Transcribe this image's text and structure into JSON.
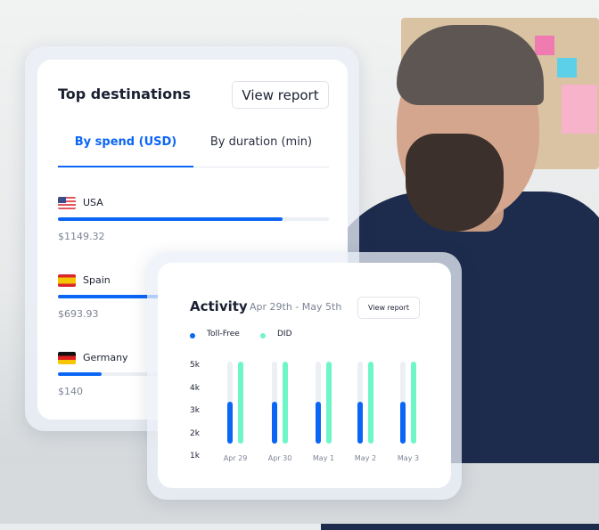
{
  "top_destinations": {
    "title": "Top destinations",
    "view_report": "View report",
    "tabs": [
      {
        "label": "By spend (USD)",
        "active": true
      },
      {
        "label": "By duration (min)",
        "active": false
      }
    ],
    "rows": [
      {
        "country": "USA",
        "flag": "us-flag-icon",
        "value": "$1149.32",
        "fill_percent": 83
      },
      {
        "country": "Spain",
        "flag": "spain-flag-icon",
        "value": "$693.93",
        "fill_percent": 50
      },
      {
        "country": "Germany",
        "flag": "germany-flag-icon",
        "value": "$140",
        "fill_percent": 16
      }
    ]
  },
  "activity": {
    "title": "Activity",
    "date_range": "Apr 29th - May 5th",
    "view_report": "View report"
  },
  "colors": {
    "accent": "#0b66f5",
    "did": "#6ef5c8",
    "title": "#1b2033"
  },
  "chart_data": {
    "type": "bar",
    "categories": [
      "Apr 29",
      "Apr 30",
      "May 1",
      "May 2",
      "May 3"
    ],
    "y_ticks": [
      "5k",
      "4k",
      "3k",
      "2k",
      "1k"
    ],
    "ylim": [
      1,
      5
    ],
    "legend_position": "top-left",
    "series": [
      {
        "name": "Toll-Free",
        "color": "#0b66f5",
        "values": [
          3.3,
          3.3,
          3.3,
          3.3,
          3.3
        ]
      },
      {
        "name": "DID",
        "color": "#6ef5c8",
        "values": [
          5,
          5,
          5,
          5,
          5
        ]
      }
    ]
  }
}
